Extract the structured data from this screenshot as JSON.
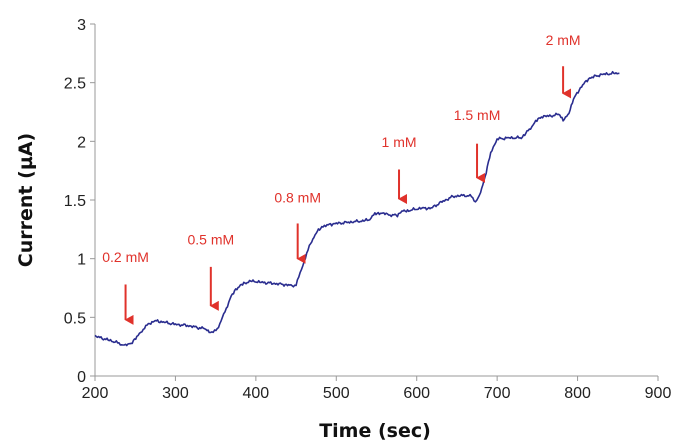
{
  "chart_data": {
    "type": "line",
    "xlabel": "Time (sec)",
    "ylabel": "Current (µA)",
    "xlim": [
      200,
      900
    ],
    "ylim": [
      0,
      3
    ],
    "x_ticks": [
      200,
      300,
      400,
      500,
      600,
      700,
      800,
      900
    ],
    "y_ticks": [
      0,
      0.5,
      1,
      1.5,
      2,
      2.5,
      3
    ],
    "y_tick_labels": [
      "0",
      "0.5",
      "1",
      "1.5",
      "2",
      "2.5",
      "3"
    ],
    "grid": false,
    "colors": {
      "line": "#2a2d8f",
      "annotation": "#e0322b"
    },
    "series": [
      {
        "x": [
          200,
          215,
          225,
          233,
          238,
          245,
          252,
          260,
          268,
          275,
          285,
          300,
          315,
          330,
          338,
          342,
          347,
          352,
          360,
          368,
          375,
          385,
          395,
          405,
          420,
          435,
          445,
          450,
          455,
          460,
          468,
          475,
          482,
          490,
          500,
          515,
          530,
          540,
          548,
          555,
          562,
          570,
          576,
          580,
          590,
          605,
          618,
          630,
          645,
          660,
          668,
          673,
          678,
          685,
          692,
          700,
          715,
          730,
          740,
          748,
          755,
          770,
          778,
          782,
          788,
          795,
          805,
          815,
          830,
          845,
          852
        ],
        "y": [
          0.34,
          0.31,
          0.29,
          0.27,
          0.26,
          0.28,
          0.33,
          0.4,
          0.45,
          0.47,
          0.46,
          0.44,
          0.43,
          0.41,
          0.4,
          0.38,
          0.37,
          0.4,
          0.52,
          0.66,
          0.74,
          0.79,
          0.81,
          0.8,
          0.79,
          0.78,
          0.77,
          0.78,
          0.87,
          0.98,
          1.13,
          1.22,
          1.27,
          1.29,
          1.3,
          1.31,
          1.32,
          1.33,
          1.38,
          1.39,
          1.38,
          1.37,
          1.37,
          1.4,
          1.41,
          1.43,
          1.43,
          1.48,
          1.53,
          1.54,
          1.53,
          1.49,
          1.53,
          1.7,
          1.9,
          2.02,
          2.03,
          2.03,
          2.1,
          2.17,
          2.21,
          2.22,
          2.23,
          2.18,
          2.22,
          2.36,
          2.47,
          2.54,
          2.57,
          2.58,
          2.58
        ]
      }
    ],
    "annotations": [
      {
        "label": "0.2 mM",
        "x": 238,
        "y_text": 0.97,
        "arrow_from": 0.78,
        "arrow_to": 0.41
      },
      {
        "label": "0.5 mM",
        "x": 344,
        "y_text": 1.12,
        "arrow_from": 0.93,
        "arrow_to": 0.53
      },
      {
        "label": "0.8 mM",
        "x": 452,
        "y_text": 1.48,
        "arrow_from": 1.3,
        "arrow_to": 0.93
      },
      {
        "label": "1 mM",
        "x": 578,
        "y_text": 1.95,
        "arrow_from": 1.76,
        "arrow_to": 1.44
      },
      {
        "label": "1.5 mM",
        "x": 675,
        "y_text": 2.18,
        "arrow_from": 1.98,
        "arrow_to": 1.62
      },
      {
        "label": "2 mM",
        "x": 782,
        "y_text": 2.82,
        "arrow_from": 2.64,
        "arrow_to": 2.34
      }
    ]
  }
}
